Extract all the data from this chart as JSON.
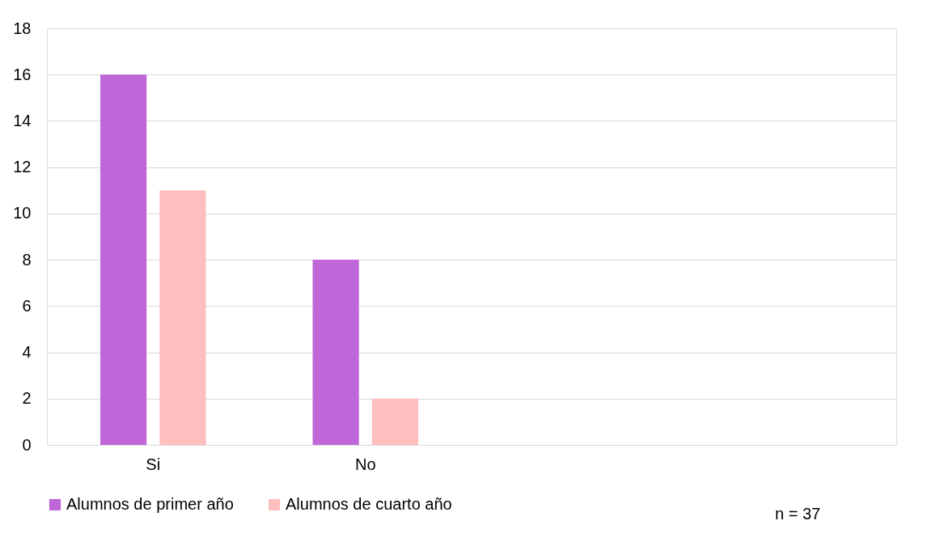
{
  "chart_data": {
    "type": "bar",
    "categories": [
      "Si",
      "No",
      null,
      null
    ],
    "series": [
      {
        "name": "Alumnos de primer año",
        "color": "#bf67d9",
        "values": [
          16,
          8,
          null,
          null
        ]
      },
      {
        "name": "Alumnos de cuarto año",
        "color": "#ffbfbf",
        "values": [
          11,
          2,
          null,
          null
        ]
      }
    ],
    "ylim": [
      0,
      18
    ],
    "yticks": [
      0,
      2,
      4,
      6,
      8,
      10,
      12,
      14,
      16,
      18
    ],
    "grid": "y",
    "legend": "bottom",
    "annotations": [
      "n = 37"
    ]
  }
}
